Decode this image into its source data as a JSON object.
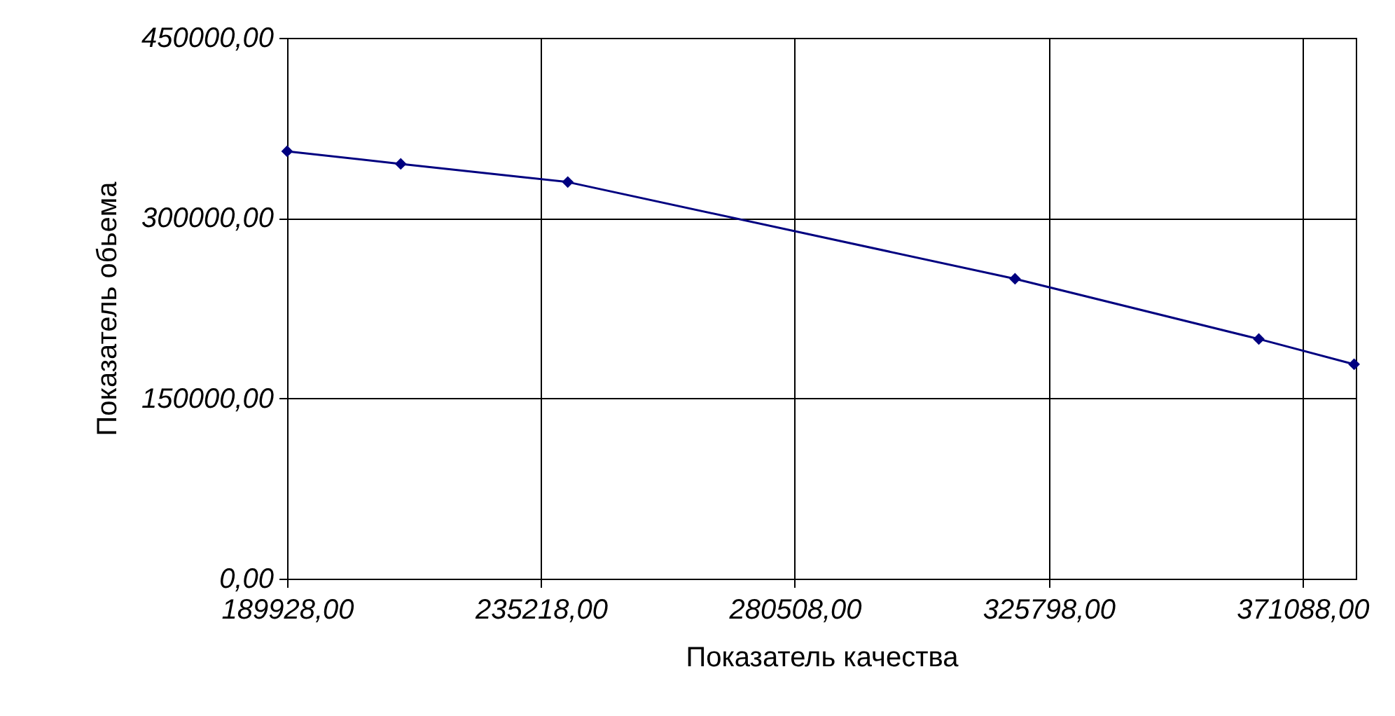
{
  "chart_data": {
    "type": "line",
    "xlabel": "Показатель качества",
    "ylabel": "Показатель обьема",
    "x": [
      189928,
      210200,
      240000,
      319800,
      363300,
      380300
    ],
    "series": [
      {
        "color": "#000080",
        "values": [
          355600,
          345100,
          330000,
          249500,
          199400,
          178400
        ]
      }
    ],
    "xlim": [
      189928,
      380600
    ],
    "xticks": [
      {
        "value": 189928,
        "label": "189928,00"
      },
      {
        "value": 235218,
        "label": "235218,00"
      },
      {
        "value": 280508,
        "label": "280508,00"
      },
      {
        "value": 325798,
        "label": "325798,00"
      },
      {
        "value": 371088,
        "label": "371088,00"
      }
    ],
    "ylim": [
      0,
      450000
    ],
    "yticks": [
      {
        "value": 0,
        "label": "0,00"
      },
      {
        "value": 150000,
        "label": "150000,00"
      },
      {
        "value": 300000,
        "label": "300000,00"
      },
      {
        "value": 450000,
        "label": "450000,00"
      }
    ],
    "grid": true,
    "marker": "diamond",
    "line_style": "solid"
  }
}
